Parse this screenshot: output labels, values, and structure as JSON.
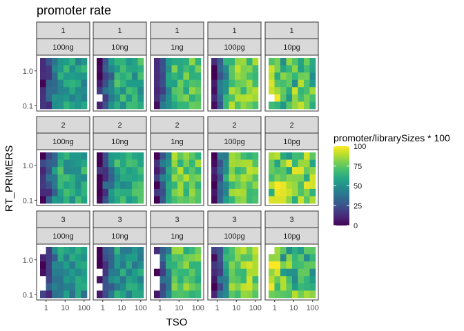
{
  "chart_data": {
    "type": "heatmap",
    "title": "promoter rate",
    "xlabel": "TSO",
    "ylabel": "RT_PRIMERS",
    "x_scale": "log10",
    "y_scale": "log10",
    "x_ticks": [
      "1",
      "10",
      "100"
    ],
    "y_ticks": [
      "1.0",
      "0.1"
    ],
    "facet_rows": [
      "1",
      "2",
      "3"
    ],
    "facet_cols": [
      "100ng",
      "10ng",
      "1ng",
      "100pg",
      "10pg"
    ],
    "fill_legend": {
      "title": "promoter/librarySizes * 100",
      "min": 0,
      "max": 100,
      "breaks": [
        "100",
        "75",
        "50",
        "25",
        "0"
      ],
      "palette": "viridis"
    },
    "n_tso_levels": 8,
    "n_rt_levels": 7,
    "panel_means": [
      [
        40,
        45,
        55,
        62,
        70
      ],
      [
        45,
        45,
        62,
        62,
        75
      ],
      [
        35,
        38,
        58,
        65,
        68
      ]
    ],
    "columns_high_at_low_tso": [
      false,
      false,
      false,
      false,
      true
    ]
  },
  "colors": {
    "panel_border": "#333333",
    "strip_fill": "#d9d9d9",
    "axis_text": "#4d4d4d",
    "missing": "#ffffff"
  }
}
